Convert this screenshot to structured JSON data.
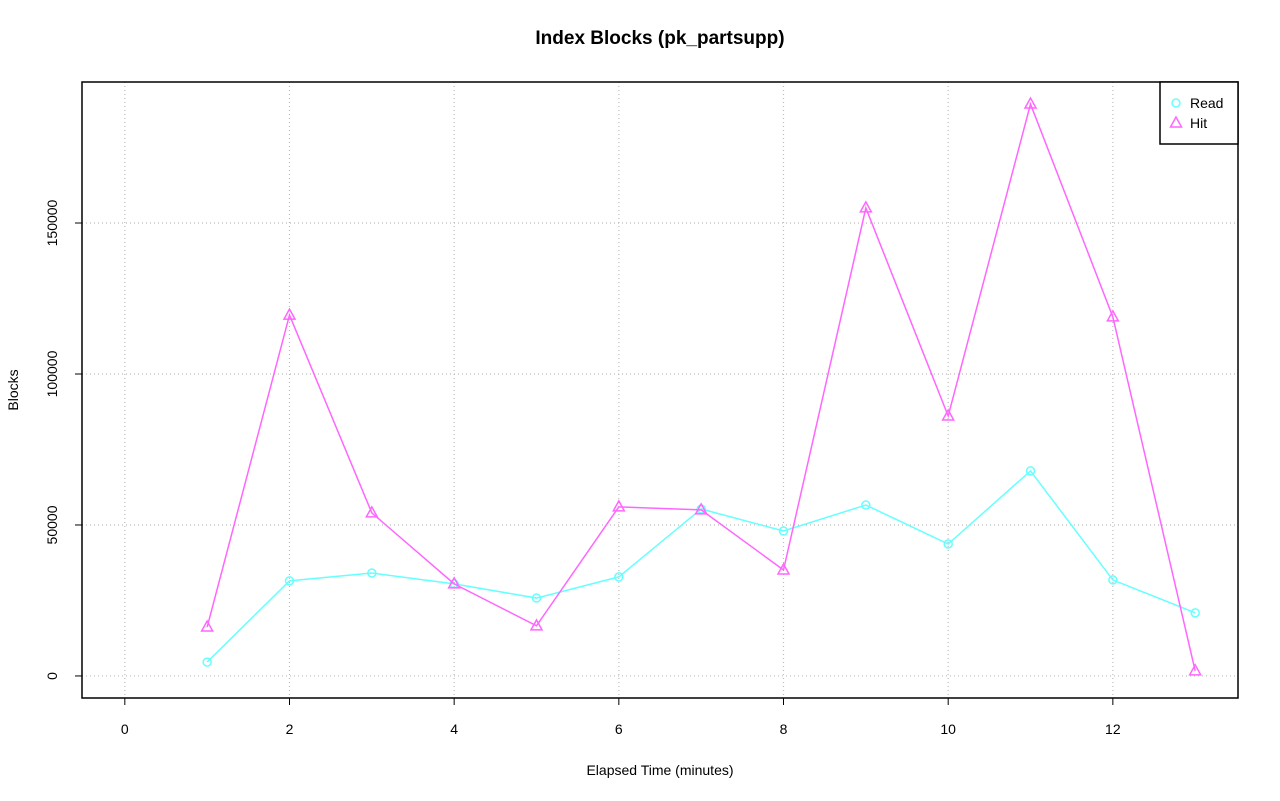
{
  "chart_data": {
    "type": "line",
    "title": "Index Blocks (pk_partsupp)",
    "x_label": "Elapsed Time (minutes)",
    "y_label": "Blocks",
    "x": [
      1,
      2,
      3,
      4,
      5,
      6,
      7,
      8,
      9,
      10,
      11,
      12,
      13
    ],
    "series": [
      {
        "name": "Read",
        "color": "#66ffff",
        "marker": "circle",
        "values": [
          4600,
          31500,
          34100,
          30500,
          25800,
          32800,
          55300,
          48000,
          56600,
          43700,
          67900,
          31800,
          20900
        ]
      },
      {
        "name": "Hit",
        "color": "#ff66ff",
        "marker": "triangle",
        "values": [
          16200,
          119500,
          54000,
          30500,
          16600,
          56000,
          55000,
          35100,
          155000,
          86100,
          189400,
          118900,
          1700
        ]
      }
    ],
    "xlim": [
      -0.52,
      13.52
    ],
    "xticks": [
      0,
      2,
      4,
      6,
      8,
      10,
      12
    ],
    "ylim": [
      -7300,
      196700
    ],
    "yticks": [
      0,
      50000,
      100000,
      150000
    ],
    "grid": true,
    "legend": "top-right"
  }
}
